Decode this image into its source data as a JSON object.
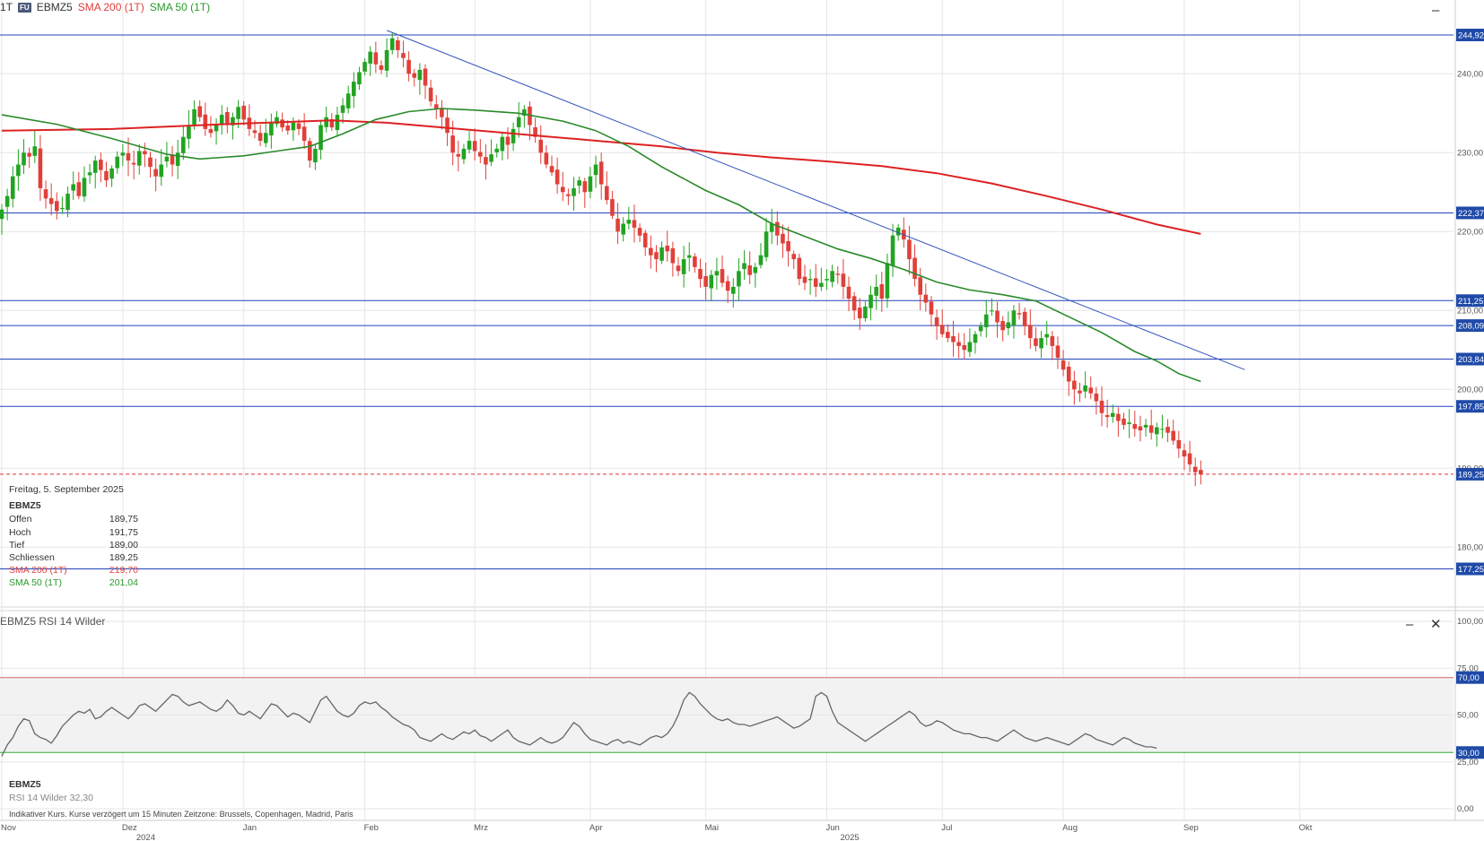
{
  "header": {
    "period_label": "1T",
    "badge": "FU",
    "symbol": "EBMZ5",
    "sma200_label": "SMA 200 (1T)",
    "sma50_label": "SMA 50 (1T)"
  },
  "colors": {
    "up": "#22a322",
    "down": "#e0403a",
    "sma200": "#dd2222",
    "sma50": "#2a8a2a",
    "hline": "#2244bb",
    "trendline": "#3355bb",
    "grid": "#e6e6e6",
    "rsi": "#666666",
    "rsi_upper": "#cc6666",
    "rsi_lower": "#33aa33"
  },
  "infobox": {
    "date": "Freitag, 5. September 2025",
    "symbol": "EBMZ5",
    "rows": [
      {
        "label": "Offen",
        "value": "189,75",
        "style": ""
      },
      {
        "label": "Hoch",
        "value": "191,75",
        "style": ""
      },
      {
        "label": "Tief",
        "value": "189,00",
        "style": ""
      },
      {
        "label": "Schliessen",
        "value": "189,25",
        "style": ""
      },
      {
        "label": "SMA 200 (1T)",
        "value": "219,70",
        "style": "red"
      },
      {
        "label": "SMA 50 (1T)",
        "value": "201,04",
        "style": "green"
      }
    ]
  },
  "rsi_panel": {
    "title": "EBMZ5  RSI 14 Wilder",
    "symbol": "EBMZ5",
    "value_text": "RSI 14 Wilder 32,30",
    "footnote": "Indikativer Kurs. Kurse verzögert um 15 Minuten   Zeitzone: Brussels, Copenhagen, Madrid, Paris"
  },
  "controls": {
    "minimize": "–",
    "close": "✕"
  },
  "chart_data": [
    {
      "type": "candlestick",
      "ylim": [
        172,
        249
      ],
      "y_ticks": [
        "180,00",
        "190,00",
        "200,00",
        "210,00",
        "220,00",
        "230,00",
        "240,00"
      ],
      "y_tick_values": [
        180,
        190,
        200,
        210,
        220,
        230,
        240
      ],
      "x_labels": [
        {
          "label": "Nov",
          "sub": ""
        },
        {
          "label": "Dez",
          "sub": "2024"
        },
        {
          "label": "Jan",
          "sub": ""
        },
        {
          "label": "Feb",
          "sub": ""
        },
        {
          "label": "Mrz",
          "sub": ""
        },
        {
          "label": "Apr",
          "sub": ""
        },
        {
          "label": "Mai",
          "sub": ""
        },
        {
          "label": "Jun",
          "sub": "2025"
        },
        {
          "label": "Jul",
          "sub": ""
        },
        {
          "label": "Aug",
          "sub": ""
        },
        {
          "label": "Sep",
          "sub": ""
        },
        {
          "label": "Okt",
          "sub": ""
        }
      ],
      "x_month_index": [
        0,
        22,
        44,
        66,
        86,
        107,
        128,
        150,
        171,
        193,
        215,
        236
      ],
      "horizontal_lines": [
        {
          "value": 244.92,
          "label": "244,92"
        },
        {
          "value": 222.37,
          "label": "222,37"
        },
        {
          "value": 211.25,
          "label": "211,25"
        },
        {
          "value": 208.09,
          "label": "208,09"
        },
        {
          "value": 203.84,
          "label": "203,84"
        },
        {
          "value": 197.85,
          "label": "197,85"
        },
        {
          "value": 177.25,
          "label": "177,25"
        }
      ],
      "last_price": {
        "value": 189.25,
        "label": "189,25"
      },
      "trendline": {
        "from": {
          "index": 70,
          "value": 245.5
        },
        "to": {
          "index": 226,
          "value": 202.5
        }
      },
      "closes": [
        222.8,
        224.5,
        227.0,
        228.5,
        230.0,
        229.5,
        230.8,
        225.5,
        224.2,
        223.5,
        222.6,
        223.0,
        224.8,
        226.0,
        224.5,
        226.8,
        227.5,
        229.0,
        227.8,
        226.5,
        228.0,
        229.5,
        230.0,
        229.0,
        228.5,
        230.2,
        229.8,
        228.2,
        227.0,
        228.5,
        229.5,
        228.5,
        230.0,
        232.0,
        233.5,
        235.5,
        234.5,
        233.0,
        232.5,
        233.5,
        234.8,
        233.5,
        234.5,
        235.8,
        234.2,
        233.0,
        232.5,
        231.5,
        232.5,
        233.8,
        234.5,
        233.2,
        232.8,
        233.8,
        233.0,
        231.5,
        229.0,
        230.5,
        233.5,
        234.5,
        233.2,
        234.8,
        236.0,
        237.5,
        239.0,
        240.2,
        241.5,
        242.8,
        241.2,
        240.5,
        243.0,
        244.5,
        243.0,
        242.0,
        240.0,
        239.5,
        240.5,
        238.5,
        236.5,
        235.5,
        234.5,
        232.5,
        230.0,
        229.5,
        230.5,
        231.5,
        230.2,
        229.5,
        228.5,
        229.8,
        230.5,
        232.0,
        231.0,
        233.0,
        234.5,
        235.5,
        233.5,
        232.0,
        230.0,
        228.5,
        227.5,
        226.0,
        225.0,
        224.5,
        225.5,
        226.5,
        225.0,
        227.0,
        228.5,
        226.0,
        224.0,
        222.0,
        220.0,
        221.0,
        221.5,
        220.5,
        219.5,
        218.0,
        217.0,
        216.5,
        218.0,
        217.5,
        216.0,
        215.0,
        216.5,
        217.0,
        215.5,
        214.0,
        213.0,
        214.5,
        215.0,
        213.5,
        212.5,
        213.0,
        215.0,
        216.0,
        214.5,
        215.5,
        217.0,
        220.0,
        221.0,
        219.5,
        218.5,
        217.5,
        216.5,
        214.0,
        213.5,
        214.0,
        213.0,
        213.5,
        214.0,
        215.0,
        214.5,
        213.0,
        211.5,
        210.0,
        209.0,
        210.5,
        212.0,
        213.0,
        211.5,
        216.0,
        219.5,
        220.5,
        219.0,
        216.5,
        214.0,
        212.0,
        211.0,
        209.5,
        208.0,
        207.0,
        206.5,
        206.0,
        205.5,
        205.0,
        206.0,
        207.0,
        208.0,
        209.5,
        210.0,
        208.5,
        207.5,
        208.5,
        210.0,
        209.5,
        208.0,
        206.5,
        205.5,
        206.5,
        207.0,
        205.5,
        204.0,
        202.5,
        201.0,
        200.0,
        199.5,
        200.5,
        199.5,
        198.5,
        197.0,
        196.5,
        197.0,
        196.0,
        195.5,
        195.8,
        195.0,
        194.8,
        195.5,
        194.5,
        195.2,
        195.0,
        194.5,
        193.5,
        192.5,
        191.5,
        190.5,
        189.5,
        189.25
      ],
      "sma50": {
        "label": "SMA 50 (1T)",
        "points": [
          [
            0,
            234.8
          ],
          [
            10,
            233.6
          ],
          [
            20,
            231.8
          ],
          [
            30,
            229.8
          ],
          [
            36,
            229.2
          ],
          [
            44,
            229.6
          ],
          [
            50,
            230.2
          ],
          [
            56,
            230.8
          ],
          [
            62,
            232.4
          ],
          [
            68,
            234.2
          ],
          [
            74,
            235.2
          ],
          [
            80,
            235.6
          ],
          [
            86,
            235.4
          ],
          [
            94,
            235.0
          ],
          [
            102,
            234.0
          ],
          [
            108,
            232.8
          ],
          [
            114,
            230.8
          ],
          [
            120,
            228.2
          ],
          [
            128,
            225.2
          ],
          [
            134,
            223.4
          ],
          [
            140,
            221.0
          ],
          [
            146,
            219.4
          ],
          [
            152,
            217.8
          ],
          [
            158,
            216.6
          ],
          [
            164,
            215.2
          ],
          [
            170,
            213.6
          ],
          [
            176,
            212.6
          ],
          [
            182,
            212.0
          ],
          [
            188,
            211.2
          ],
          [
            194,
            209.2
          ],
          [
            200,
            207.2
          ],
          [
            206,
            204.8
          ],
          [
            210,
            203.6
          ],
          [
            214,
            202.0
          ],
          [
            218,
            201.0
          ]
        ]
      },
      "sma200": {
        "label": "SMA 200 (1T)",
        "points": [
          [
            0,
            232.8
          ],
          [
            20,
            233.0
          ],
          [
            40,
            233.6
          ],
          [
            60,
            234.1
          ],
          [
            70,
            233.8
          ],
          [
            80,
            233.2
          ],
          [
            90,
            232.6
          ],
          [
            100,
            232.0
          ],
          [
            110,
            231.4
          ],
          [
            120,
            230.8
          ],
          [
            130,
            230.0
          ],
          [
            140,
            229.4
          ],
          [
            150,
            228.9
          ],
          [
            160,
            228.3
          ],
          [
            170,
            227.4
          ],
          [
            180,
            226.1
          ],
          [
            190,
            224.5
          ],
          [
            200,
            222.8
          ],
          [
            210,
            220.9
          ],
          [
            218,
            219.7
          ]
        ]
      },
      "x_range": [
        0,
        243
      ]
    },
    {
      "type": "line",
      "series": [
        {
          "name": "RSI 14 Wilder",
          "values": [
            28,
            34,
            38,
            44,
            48,
            47,
            40,
            38,
            37,
            35,
            39,
            44,
            47,
            50,
            52,
            51,
            53,
            48,
            49,
            52,
            54,
            52,
            50,
            48,
            51,
            55,
            56,
            54,
            52,
            55,
            58,
            61,
            60,
            57,
            55,
            56,
            57,
            55,
            53,
            52,
            54,
            58,
            55,
            51,
            50,
            52,
            50,
            48,
            52,
            56,
            55,
            52,
            49,
            51,
            50,
            48,
            46,
            52,
            58,
            60,
            56,
            52,
            50,
            49,
            51,
            55,
            57,
            56,
            57,
            54,
            52,
            49,
            47,
            45,
            44,
            42,
            38,
            37,
            36,
            38,
            40,
            38,
            37,
            39,
            41,
            40,
            42,
            39,
            38,
            36,
            38,
            40,
            42,
            38,
            36,
            35,
            34,
            36,
            38,
            36,
            35,
            36,
            38,
            42,
            46,
            44,
            40,
            37,
            36,
            35,
            34,
            36,
            37,
            35,
            36,
            35,
            34,
            36,
            38,
            39,
            38,
            40,
            44,
            50,
            58,
            62,
            60,
            56,
            53,
            50,
            48,
            47,
            48,
            46,
            45,
            45,
            44,
            45,
            46,
            47,
            48,
            49,
            47,
            45,
            43,
            44,
            46,
            48,
            60,
            62,
            60,
            52,
            46,
            44,
            42,
            40,
            38,
            36,
            38,
            40,
            42,
            44,
            46,
            48,
            50,
            52,
            50,
            46,
            44,
            45,
            47,
            46,
            44,
            42,
            41,
            40,
            40,
            39,
            38,
            38,
            37,
            36,
            38,
            40,
            42,
            40,
            38,
            37,
            36,
            37,
            38,
            37,
            36,
            35,
            34,
            36,
            38,
            40,
            39,
            37,
            36,
            35,
            34,
            36,
            38,
            37,
            35,
            34,
            33,
            33,
            32.3
          ]
        }
      ],
      "ylim": [
        0,
        100
      ],
      "y_ticks": [
        "0,00",
        "25,00",
        "50,00",
        "75,00",
        "100,00"
      ],
      "y_tick_values": [
        0,
        25,
        50,
        75,
        100
      ],
      "levels": [
        {
          "value": 70,
          "label": "70,00"
        },
        {
          "value": 30,
          "label": "30,00"
        }
      ]
    }
  ]
}
